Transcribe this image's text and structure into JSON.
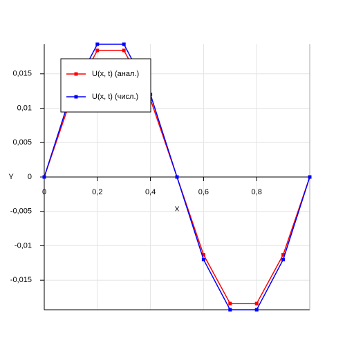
{
  "chart_data": {
    "type": "line",
    "x": [
      0,
      0.1,
      0.2,
      0.3,
      0.4,
      0.5,
      0.6,
      0.7,
      0.8,
      0.9,
      1.0
    ],
    "series": [
      {
        "name": "U(x, t) (анал.)",
        "color": "#ff0000",
        "values": [
          0,
          0.0113,
          0.0184,
          0.0184,
          0.0113,
          0,
          -0.0113,
          -0.0184,
          -0.0184,
          -0.0113,
          0
        ]
      },
      {
        "name": "U(x, t) (числ.)",
        "color": "#0000ff",
        "values": [
          0,
          0.012,
          0.0193,
          0.0193,
          0.012,
          0,
          -0.012,
          -0.0193,
          -0.0193,
          -0.012,
          0
        ]
      }
    ],
    "xlabel": "X",
    "ylabel": "Y",
    "xlim": [
      0,
      1
    ],
    "ylim": [
      -0.0193,
      0.0193
    ],
    "xticks": [
      0,
      {
        "value": 0.2,
        "label": "0,2"
      },
      {
        "value": 0.4,
        "label": "0,4"
      },
      {
        "value": 0.6,
        "label": "0,6"
      },
      {
        "value": 0.8,
        "label": "0,8"
      }
    ],
    "yticks": [
      {
        "value": -0.015,
        "label": "-0,015"
      },
      {
        "value": -0.01,
        "label": "-0,01"
      },
      {
        "value": -0.005,
        "label": "-0,005"
      },
      0,
      {
        "value": 0.005,
        "label": "0,005"
      },
      {
        "value": 0.01,
        "label": "0,01"
      },
      {
        "value": 0.015,
        "label": "0,015"
      }
    ],
    "grid": true,
    "legend": "upper left"
  }
}
